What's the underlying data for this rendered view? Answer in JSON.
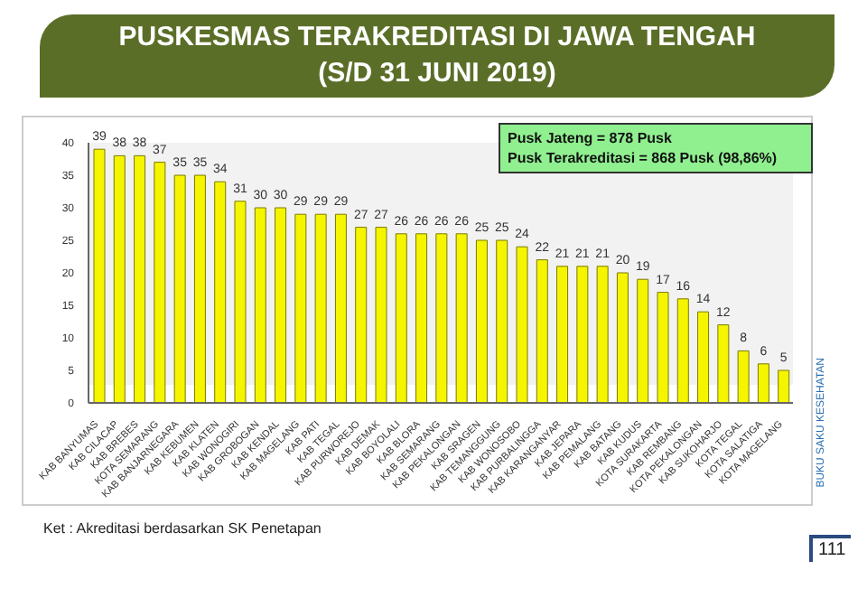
{
  "chart_data": {
    "type": "bar",
    "title": "PUSKESMAS TERAKREDITASI DI JAWA TENGAH",
    "subtitle": "(S/D 31 JUNI 2019)",
    "categories": [
      "KAB BANYUMAS",
      "KAB CILACAP",
      "KAB BREBES",
      "KOTA SEMARANG",
      "KAB BANJARNEGARA",
      "KAB KEBUMEN",
      "KAB KLATEN",
      "KAB WONOGIRI",
      "KAB GROBOGAN",
      "KAB KENDAL",
      "KAB MAGELANG",
      "KAB PATI",
      "KAB TEGAL",
      "KAB PURWOREJO",
      "KAB DEMAK",
      "KAB BOYOLALI",
      "KAB BLORA",
      "KAB SEMARANG",
      "KAB PEKALONGAN",
      "KAB SRAGEN",
      "KAB TEMANGGUNG",
      "KAB WONOSOBO",
      "KAB PURBALINGGA",
      "KAB KARANGANYAR",
      "KAB JEPARA",
      "KAB PEMALANG",
      "KAB BATANG",
      "KAB KUDUS",
      "KOTA SURAKARTA",
      "KAB REMBANG",
      "KOTA PEKALONGAN",
      "KAB SUKOHARJO",
      "KOTA TEGAL",
      "KOTA SALATIGA",
      "KOTA MAGELANG"
    ],
    "values": [
      39,
      38,
      38,
      37,
      35,
      35,
      34,
      31,
      30,
      30,
      29,
      29,
      29,
      27,
      27,
      26,
      26,
      26,
      26,
      25,
      25,
      24,
      22,
      21,
      21,
      21,
      20,
      19,
      17,
      16,
      14,
      12,
      8,
      6,
      5
    ],
    "color": "#f5f500",
    "ylim": [
      0,
      40
    ],
    "yticks": [
      0,
      5,
      10,
      15,
      20,
      25,
      30,
      35,
      40
    ],
    "grid": false,
    "legend": false,
    "data_labels": true,
    "annotations": [
      "Pusk Jateng = 878 Pusk",
      "Pusk Terakreditasi = 868 Pusk (98,86%)",
      "Ket : Akreditasi berdasarkan SK Penetapan",
      "BUKU SAKU KESEHATAN",
      "111"
    ]
  }
}
